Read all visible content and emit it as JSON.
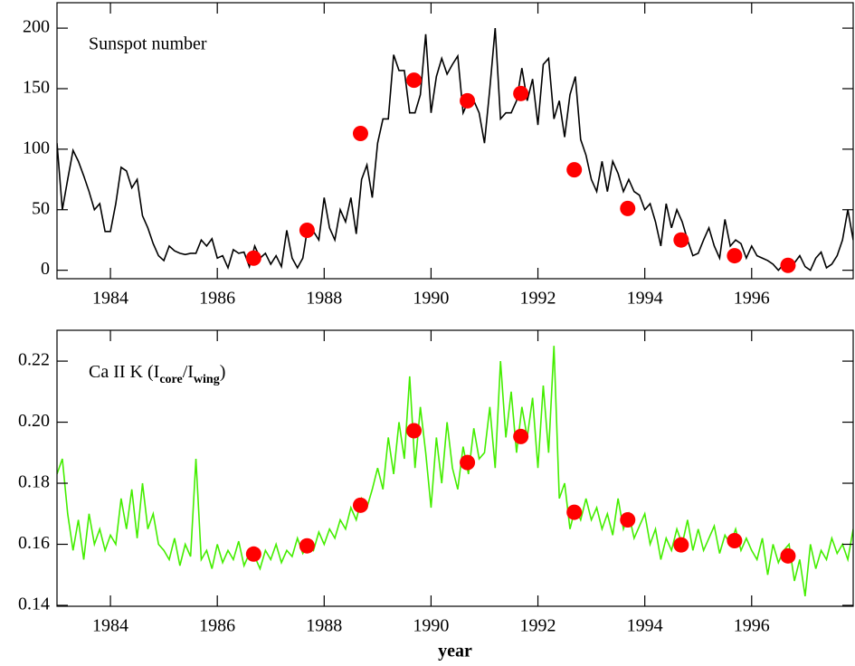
{
  "chart_data": [
    {
      "type": "line",
      "title": "Sunspot number",
      "color": "#000000",
      "x": [
        1983.0,
        1983.1,
        1983.2,
        1983.3,
        1983.4,
        1983.5,
        1983.6,
        1983.7,
        1983.8,
        1983.9,
        1984.0,
        1984.1,
        1984.2,
        1984.3,
        1984.4,
        1984.5,
        1984.6,
        1984.7,
        1984.8,
        1984.9,
        1985.0,
        1985.1,
        1985.2,
        1985.3,
        1985.4,
        1985.5,
        1985.6,
        1985.7,
        1985.8,
        1985.9,
        1986.0,
        1986.1,
        1986.2,
        1986.3,
        1986.4,
        1986.5,
        1986.6,
        1986.7,
        1986.8,
        1986.9,
        1987.0,
        1987.1,
        1987.2,
        1987.3,
        1987.4,
        1987.5,
        1987.6,
        1987.7,
        1987.8,
        1987.9,
        1988.0,
        1988.1,
        1988.2,
        1988.3,
        1988.4,
        1988.5,
        1988.6,
        1988.7,
        1988.8,
        1988.9,
        1989.0,
        1989.1,
        1989.2,
        1989.3,
        1989.4,
        1989.5,
        1989.6,
        1989.7,
        1989.8,
        1989.9,
        1990.0,
        1990.1,
        1990.2,
        1990.3,
        1990.4,
        1990.5,
        1990.6,
        1990.7,
        1990.8,
        1990.9,
        1991.0,
        1991.1,
        1991.2,
        1991.3,
        1991.4,
        1991.5,
        1991.6,
        1991.7,
        1991.8,
        1991.9,
        1992.0,
        1992.1,
        1992.2,
        1992.3,
        1992.4,
        1992.5,
        1992.6,
        1992.7,
        1992.8,
        1992.9,
        1993.0,
        1993.1,
        1993.2,
        1993.3,
        1993.4,
        1993.5,
        1993.6,
        1993.7,
        1993.8,
        1993.9,
        1994.0,
        1994.1,
        1994.2,
        1994.3,
        1994.4,
        1994.5,
        1994.6,
        1994.7,
        1994.8,
        1994.9,
        1995.0,
        1995.1,
        1995.2,
        1995.3,
        1995.4,
        1995.5,
        1995.6,
        1995.7,
        1995.8,
        1995.9,
        1996.0,
        1996.1,
        1996.2,
        1996.3,
        1996.4,
        1996.5,
        1996.6,
        1996.7,
        1996.8,
        1996.9,
        1997.0,
        1997.1,
        1997.2,
        1997.3,
        1997.4,
        1997.5,
        1997.6,
        1997.7,
        1997.8,
        1997.9
      ],
      "values": [
        105,
        50,
        75,
        99,
        90,
        78,
        65,
        50,
        55,
        32,
        32,
        55,
        85,
        82,
        68,
        75,
        45,
        35,
        22,
        12,
        8,
        20,
        16,
        14,
        13,
        14,
        14,
        25,
        20,
        26,
        10,
        12,
        2,
        17,
        14,
        15,
        3,
        20,
        10,
        14,
        5,
        12,
        3,
        33,
        10,
        2,
        10,
        38,
        32,
        25,
        60,
        35,
        25,
        50,
        40,
        60,
        30,
        75,
        87,
        60,
        105,
        125,
        125,
        178,
        165,
        165,
        130,
        130,
        145,
        195,
        130,
        160,
        175,
        162,
        170,
        177,
        130,
        140,
        140,
        130,
        105,
        150,
        200,
        125,
        130,
        130,
        140,
        167,
        140,
        158,
        120,
        170,
        175,
        125,
        140,
        110,
        145,
        160,
        108,
        95,
        75,
        65,
        90,
        65,
        90,
        80,
        65,
        75,
        65,
        62,
        50,
        55,
        40,
        20,
        55,
        35,
        50,
        40,
        25,
        12,
        14,
        25,
        35,
        20,
        10,
        42,
        20,
        25,
        22,
        10,
        20,
        12,
        10,
        8,
        5,
        0,
        5,
        3,
        6,
        12,
        3,
        0,
        10,
        15,
        2,
        5,
        12,
        25,
        50,
        25
      ],
      "points": {
        "color": "#ff0000",
        "x": [
          1986.68,
          1987.68,
          1988.68,
          1989.68,
          1990.68,
          1991.68,
          1992.68,
          1993.68,
          1994.68,
          1995.68,
          1996.68
        ],
        "values": [
          10,
          33,
          113,
          157,
          140,
          146,
          83,
          51,
          25,
          12,
          4
        ]
      },
      "xlim": [
        1983,
        1997.9
      ],
      "xticks": [
        1984,
        1986,
        1988,
        1990,
        1992,
        1994,
        1996
      ],
      "ylim": [
        -7,
        221
      ],
      "yticks": [
        0,
        50,
        100,
        150,
        200
      ]
    },
    {
      "type": "line",
      "title_parts": [
        "Ca II K (I",
        "core",
        "/I",
        "wing",
        ")"
      ],
      "color": "#44ee00",
      "xlabel": "year",
      "x": [
        1983.0,
        1983.1,
        1983.2,
        1983.3,
        1983.4,
        1983.5,
        1983.6,
        1983.7,
        1983.8,
        1983.9,
        1984.0,
        1984.1,
        1984.2,
        1984.3,
        1984.4,
        1984.5,
        1984.6,
        1984.7,
        1984.8,
        1984.9,
        1985.0,
        1985.1,
        1985.2,
        1985.3,
        1985.4,
        1985.5,
        1985.6,
        1985.7,
        1985.8,
        1985.9,
        1986.0,
        1986.1,
        1986.2,
        1986.3,
        1986.4,
        1986.5,
        1986.6,
        1986.7,
        1986.8,
        1986.9,
        1987.0,
        1987.1,
        1987.2,
        1987.3,
        1987.4,
        1987.5,
        1987.6,
        1987.7,
        1987.8,
        1987.9,
        1988.0,
        1988.1,
        1988.2,
        1988.3,
        1988.4,
        1988.5,
        1988.6,
        1988.7,
        1988.8,
        1988.9,
        1989.0,
        1989.1,
        1989.2,
        1989.3,
        1989.4,
        1989.5,
        1989.6,
        1989.7,
        1989.8,
        1989.9,
        1990.0,
        1990.1,
        1990.2,
        1990.3,
        1990.4,
        1990.5,
        1990.6,
        1990.7,
        1990.8,
        1990.9,
        1991.0,
        1991.1,
        1991.2,
        1991.3,
        1991.4,
        1991.5,
        1991.6,
        1991.7,
        1991.8,
        1991.9,
        1992.0,
        1992.1,
        1992.2,
        1992.3,
        1992.4,
        1992.5,
        1992.6,
        1992.7,
        1992.8,
        1992.9,
        1993.0,
        1993.1,
        1993.2,
        1993.3,
        1993.4,
        1993.5,
        1993.6,
        1993.7,
        1993.8,
        1993.9,
        1994.0,
        1994.1,
        1994.2,
        1994.3,
        1994.4,
        1994.5,
        1994.6,
        1994.7,
        1994.8,
        1994.9,
        1995.0,
        1995.1,
        1995.2,
        1995.3,
        1995.4,
        1995.5,
        1995.6,
        1995.7,
        1995.8,
        1995.9,
        1996.0,
        1996.1,
        1996.2,
        1996.3,
        1996.4,
        1996.5,
        1996.6,
        1996.7,
        1996.8,
        1996.9,
        1997.0,
        1997.1,
        1997.2,
        1997.3,
        1997.4,
        1997.5,
        1997.6,
        1997.7,
        1997.8,
        1997.9
      ],
      "values": [
        0.183,
        0.188,
        0.17,
        0.158,
        0.168,
        0.155,
        0.17,
        0.16,
        0.165,
        0.158,
        0.163,
        0.16,
        0.175,
        0.165,
        0.178,
        0.162,
        0.18,
        0.165,
        0.17,
        0.16,
        0.158,
        0.155,
        0.162,
        0.153,
        0.16,
        0.156,
        0.188,
        0.155,
        0.158,
        0.152,
        0.16,
        0.154,
        0.158,
        0.155,
        0.161,
        0.153,
        0.157,
        0.156,
        0.152,
        0.158,
        0.155,
        0.16,
        0.154,
        0.158,
        0.156,
        0.162,
        0.157,
        0.16,
        0.158,
        0.164,
        0.16,
        0.165,
        0.162,
        0.168,
        0.165,
        0.172,
        0.168,
        0.175,
        0.172,
        0.178,
        0.185,
        0.178,
        0.195,
        0.183,
        0.2,
        0.188,
        0.215,
        0.185,
        0.205,
        0.19,
        0.172,
        0.195,
        0.18,
        0.2,
        0.185,
        0.178,
        0.192,
        0.183,
        0.198,
        0.188,
        0.19,
        0.205,
        0.185,
        0.22,
        0.195,
        0.21,
        0.19,
        0.205,
        0.195,
        0.208,
        0.185,
        0.212,
        0.19,
        0.225,
        0.175,
        0.18,
        0.165,
        0.172,
        0.168,
        0.175,
        0.168,
        0.172,
        0.165,
        0.17,
        0.163,
        0.175,
        0.165,
        0.17,
        0.162,
        0.166,
        0.17,
        0.16,
        0.165,
        0.155,
        0.162,
        0.158,
        0.165,
        0.16,
        0.168,
        0.158,
        0.165,
        0.158,
        0.162,
        0.166,
        0.157,
        0.163,
        0.16,
        0.165,
        0.158,
        0.162,
        0.158,
        0.155,
        0.162,
        0.15,
        0.16,
        0.154,
        0.158,
        0.16,
        0.148,
        0.155,
        0.143,
        0.16,
        0.152,
        0.158,
        0.155,
        0.162,
        0.157,
        0.16,
        0.155,
        0.165
      ],
      "points": {
        "color": "#ff0000",
        "x": [
          1986.68,
          1987.68,
          1988.68,
          1989.68,
          1990.68,
          1991.68,
          1992.68,
          1993.68,
          1994.68,
          1995.68,
          1996.68
        ],
        "values": [
          0.1568,
          0.1595,
          0.1728,
          0.1972,
          0.1868,
          0.1953,
          0.1705,
          0.168,
          0.1598,
          0.1612,
          0.1562
        ]
      },
      "xlim": [
        1983,
        1997.9
      ],
      "xticks": [
        1984,
        1986,
        1988,
        1990,
        1992,
        1994,
        1996
      ],
      "ylim": [
        0.1397,
        0.2301
      ],
      "yticks": [
        0.14,
        0.16,
        0.18,
        {
          "value": 0.2,
          "label": "0.20"
        },
        0.22
      ]
    }
  ]
}
